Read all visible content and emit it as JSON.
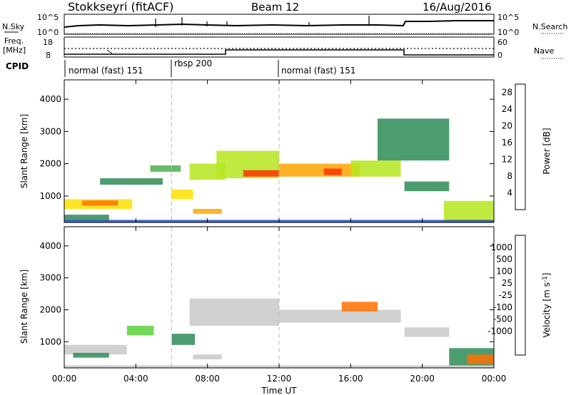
{
  "header": {
    "station": "Stokkseyri (fitACF)",
    "beam": "Beam 12",
    "date": "16/Aug/2016"
  },
  "summary_panels": {
    "nsky_label": "N.Sky",
    "nsky_ticks": [
      "10^5",
      "10^0"
    ],
    "nsearch_label": "N.Search",
    "nsearch_ticks": [
      "10^5",
      "10^0"
    ],
    "freq_label_line1": "Freq.",
    "freq_label_line2": "[MHz]",
    "freq_ticks": [
      "18",
      "8"
    ],
    "nave_label": "Nave",
    "nave_ticks": [
      "60",
      "0"
    ],
    "cpid_label": "CPID",
    "cpid_segments": [
      {
        "label": "normal (fast) 151",
        "start_hr": 0,
        "end_hr": 6
      },
      {
        "label": "rbsp 200",
        "start_hr": 6,
        "end_hr": 12
      },
      {
        "label": "normal (fast) 151",
        "start_hr": 12,
        "end_hr": 24
      }
    ]
  },
  "colors": {
    "power_scale": [
      "#0000ff",
      "#1f4fbf",
      "#2e8b57",
      "#4caf50",
      "#b5e61d",
      "#ffe000",
      "#ffa500",
      "#ff7000",
      "#ff3000",
      "#e00000"
    ],
    "velocity_scale": [
      "#1f3fbf",
      "#2050a0",
      "#2e8b57",
      "#5bd13b",
      "#c8c8c8",
      "#c0c0c0",
      "#ffa040",
      "#ff7000",
      "#ff4000",
      "#e00000"
    ]
  },
  "chart_data": [
    {
      "type": "heatmap",
      "title": "",
      "xlabel": "",
      "ylabel": "Slant Range [km]",
      "xlim": [
        0,
        24
      ],
      "ylim": [
        180,
        4600
      ],
      "xticks": [
        "00:00",
        "04:00",
        "08:00",
        "12:00",
        "16:00",
        "20:00",
        "00:00"
      ],
      "yticks": [
        1000,
        2000,
        3000,
        4000
      ],
      "colorbar_label": "Power [dB]",
      "colorbar_ticks": [
        4,
        8,
        12,
        16,
        20,
        24,
        28
      ],
      "colorbar_range": [
        0,
        30
      ],
      "regions": [
        {
          "t0": 0.0,
          "t1": 3.8,
          "r0": 600,
          "r1": 900,
          "value": 16
        },
        {
          "t0": 1.0,
          "t1": 3.0,
          "r0": 700,
          "r1": 860,
          "value": 22
        },
        {
          "t0": 0.0,
          "t1": 2.5,
          "r0": 250,
          "r1": 420,
          "value": 8
        },
        {
          "t0": 2.0,
          "t1": 5.5,
          "r0": 1350,
          "r1": 1550,
          "value": 6
        },
        {
          "t0": 4.8,
          "t1": 6.5,
          "r0": 1750,
          "r1": 1950,
          "value": 10
        },
        {
          "t0": 6.0,
          "t1": 7.2,
          "r0": 900,
          "r1": 1200,
          "value": 16
        },
        {
          "t0": 7.0,
          "t1": 9.0,
          "r0": 1500,
          "r1": 2000,
          "value": 14
        },
        {
          "t0": 7.2,
          "t1": 8.8,
          "r0": 450,
          "r1": 600,
          "value": 18
        },
        {
          "t0": 8.5,
          "t1": 12.0,
          "r0": 1550,
          "r1": 2400,
          "value": 12
        },
        {
          "t0": 10.0,
          "t1": 12.0,
          "r0": 1600,
          "r1": 1800,
          "value": 24
        },
        {
          "t0": 12.0,
          "t1": 16.5,
          "r0": 1600,
          "r1": 2000,
          "value": 20
        },
        {
          "t0": 14.5,
          "t1": 15.5,
          "r0": 1650,
          "r1": 1850,
          "value": 26
        },
        {
          "t0": 16.0,
          "t1": 18.8,
          "r0": 1600,
          "r1": 2100,
          "value": 12
        },
        {
          "t0": 19.0,
          "t1": 21.5,
          "r0": 1150,
          "r1": 1450,
          "value": 8
        },
        {
          "t0": 21.2,
          "t1": 24.0,
          "r0": 200,
          "r1": 850,
          "value": 14
        },
        {
          "t0": 17.5,
          "t1": 21.5,
          "r0": 2100,
          "r1": 3400,
          "value": 6
        },
        {
          "t0": 0.0,
          "t1": 24.0,
          "r0": 180,
          "r1": 260,
          "value": 4
        }
      ]
    },
    {
      "type": "heatmap",
      "title": "",
      "xlabel": "Time UT",
      "ylabel": "Slant Range [km]",
      "xlim": [
        0,
        24
      ],
      "ylim": [
        180,
        4600
      ],
      "xticks": [
        "00:00",
        "04:00",
        "08:00",
        "12:00",
        "16:00",
        "20:00",
        "00:00"
      ],
      "yticks": [
        1000,
        2000,
        3000,
        4000
      ],
      "colorbar_label": "Velocity [m s^-1]",
      "colorbar_ticks": [
        1000,
        500,
        100,
        25,
        -25,
        -100,
        -500,
        -1000
      ],
      "regions": [
        {
          "t0": 0.0,
          "t1": 3.5,
          "r0": 600,
          "r1": 900,
          "value": 0
        },
        {
          "t0": 0.5,
          "t1": 2.5,
          "r0": 500,
          "r1": 650,
          "value": 120
        },
        {
          "t0": 6.0,
          "t1": 7.3,
          "r0": 900,
          "r1": 1250,
          "value": 300
        },
        {
          "t0": 7.0,
          "t1": 12.0,
          "r0": 1500,
          "r1": 2350,
          "value": 0
        },
        {
          "t0": 7.2,
          "t1": 8.8,
          "r0": 450,
          "r1": 600,
          "value": 0
        },
        {
          "t0": 12.0,
          "t1": 18.8,
          "r0": 1600,
          "r1": 2000,
          "value": 0
        },
        {
          "t0": 15.5,
          "t1": 17.5,
          "r0": 1950,
          "r1": 2250,
          "value": -150
        },
        {
          "t0": 19.0,
          "t1": 21.5,
          "r0": 1150,
          "r1": 1450,
          "value": 0
        },
        {
          "t0": 21.5,
          "t1": 24.0,
          "r0": 250,
          "r1": 800,
          "value": 100
        },
        {
          "t0": 22.5,
          "t1": 24.0,
          "r0": 300,
          "r1": 600,
          "value": -300
        },
        {
          "t0": 3.5,
          "t1": 5.0,
          "r0": 1200,
          "r1": 1500,
          "value": 30
        },
        {
          "t0": 0.0,
          "t1": 24.0,
          "r0": 180,
          "r1": 260,
          "value": 0
        }
      ]
    }
  ]
}
